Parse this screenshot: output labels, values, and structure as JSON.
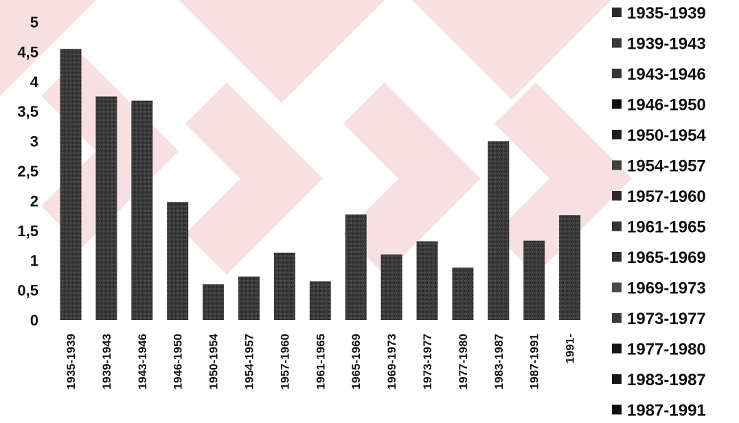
{
  "chart_data": {
    "type": "bar",
    "categories": [
      "1935-1939",
      "1939-1943",
      "1943-1946",
      "1946-1950",
      "1950-1954",
      "1954-1957",
      "1957-1960",
      "1961-1965",
      "1965-1969",
      "1969-1973",
      "1973-1977",
      "1977-1980",
      "1983-1987",
      "1987-1991",
      "1991-"
    ],
    "values": [
      4.55,
      3.75,
      3.68,
      1.98,
      0.6,
      0.73,
      1.13,
      0.65,
      1.77,
      1.1,
      1.32,
      0.88,
      3.0,
      1.33,
      1.76
    ],
    "ylim": [
      0,
      5
    ],
    "yticks": [
      0,
      0.5,
      1,
      1.5,
      2,
      2.5,
      3,
      3.5,
      4,
      4.5,
      5
    ],
    "ytick_labels": [
      "0",
      "0,5",
      "1",
      "1,5",
      "2",
      "2,5",
      "3",
      "3,5",
      "4",
      "4,5",
      "5"
    ],
    "title": "",
    "xlabel": "",
    "ylabel": "",
    "grid": false,
    "legend_position": "right",
    "legend": [
      "1935-1939",
      "1939-1943",
      "1943-1946",
      "1946-1950",
      "1950-1954",
      "1954-1957",
      "1957-1960",
      "1961-1965",
      "1965-1969",
      "1969-1973",
      "1973-1977",
      "1977-1980",
      "1983-1987",
      "1987-1991"
    ],
    "colors": {
      "bar": "#3a3a3a",
      "legend_swatches": [
        "#2b2b2b",
        "#3a3a3a",
        "#333333",
        "#111111",
        "#1e1e1e",
        "#3d3d3d",
        "#2a2a2a",
        "#333333",
        "#2f2f2f",
        "#4a4a4a",
        "#3b3b3b",
        "#151515",
        "#161616",
        "#0f0f0f"
      ],
      "watermark": "#c0001a"
    }
  }
}
